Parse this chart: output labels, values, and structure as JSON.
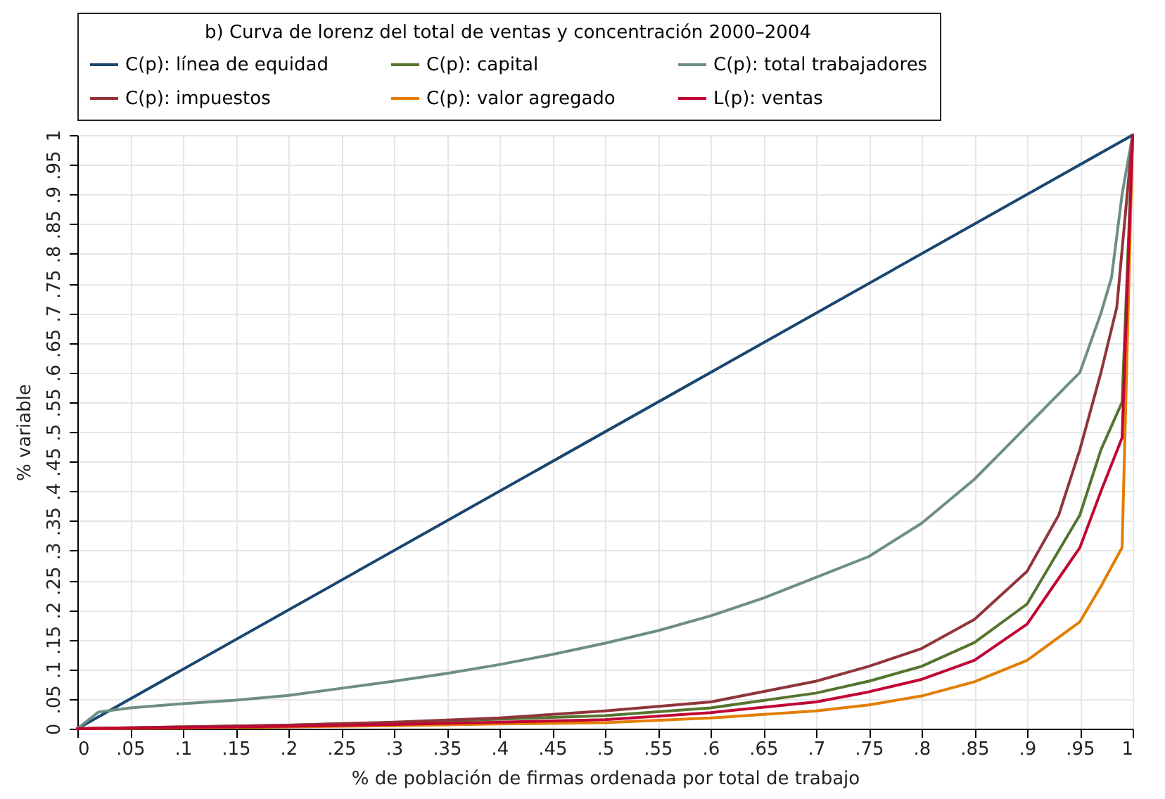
{
  "chart_data": {
    "type": "line",
    "legend_title": "b) Curva de lorenz del total de ventas y concentración 2000–2004",
    "xlabel": "% de población de firmas ordenada por total de trabajo",
    "ylabel": "% variable",
    "xlim": [
      0,
      1
    ],
    "ylim": [
      0,
      1
    ],
    "xticks": [
      0,
      {
        "value": 0.05,
        "label": ".05"
      },
      {
        "value": 0.1,
        "label": ".1"
      },
      {
        "value": 0.15,
        "label": ".15"
      },
      {
        "value": 0.2,
        "label": ".2"
      },
      {
        "value": 0.25,
        "label": ".25"
      },
      {
        "value": 0.3,
        "label": ".3"
      },
      {
        "value": 0.35,
        "label": ".35"
      },
      {
        "value": 0.4,
        "label": ".4"
      },
      {
        "value": 0.45,
        "label": ".45"
      },
      {
        "value": 0.5,
        "label": ".5"
      },
      {
        "value": 0.55,
        "label": ".55"
      },
      {
        "value": 0.6,
        "label": ".6"
      },
      {
        "value": 0.65,
        "label": ".65"
      },
      {
        "value": 0.7,
        "label": ".7"
      },
      {
        "value": 0.75,
        "label": ".75"
      },
      {
        "value": 0.8,
        "label": ".8"
      },
      {
        "value": 0.85,
        "label": ".85"
      },
      {
        "value": 0.9,
        "label": ".9"
      },
      {
        "value": 0.95,
        "label": ".95"
      },
      1
    ],
    "yticks": [
      0,
      {
        "value": 0.05,
        "label": ".05"
      },
      {
        "value": 0.1,
        "label": ".1"
      },
      {
        "value": 0.15,
        "label": ".15"
      },
      {
        "value": 0.2,
        "label": ".2"
      },
      {
        "value": 0.25,
        "label": ".25"
      },
      {
        "value": 0.3,
        "label": ".3"
      },
      {
        "value": 0.35,
        "label": ".35"
      },
      {
        "value": 0.4,
        "label": ".4"
      },
      {
        "value": 0.45,
        "label": ".45"
      },
      {
        "value": 0.5,
        "label": ".5"
      },
      {
        "value": 0.55,
        "label": ".55"
      },
      {
        "value": 0.6,
        "label": ".6"
      },
      {
        "value": 0.65,
        "label": ".65"
      },
      {
        "value": 0.7,
        "label": ".7"
      },
      {
        "value": 0.75,
        "label": ".75"
      },
      {
        "value": 0.8,
        "label": ".8"
      },
      {
        "value": 0.85,
        "label": ".85"
      },
      {
        "value": 0.9,
        "label": ".9"
      },
      {
        "value": 0.95,
        "label": ".95"
      },
      1
    ],
    "grid": true,
    "legend": "top",
    "series": [
      {
        "name": "C(p): línea de equidad",
        "color": "#1a476f",
        "x": [
          0,
          1
        ],
        "values": [
          0,
          1
        ]
      },
      {
        "name": "C(p): capital",
        "color": "#55752f",
        "x": [
          0,
          0.1,
          0.2,
          0.3,
          0.4,
          0.5,
          0.6,
          0.7,
          0.75,
          0.8,
          0.85,
          0.9,
          0.95,
          0.97,
          0.99,
          1
        ],
        "values": [
          0,
          0.003,
          0.006,
          0.01,
          0.016,
          0.022,
          0.035,
          0.06,
          0.08,
          0.105,
          0.145,
          0.21,
          0.36,
          0.47,
          0.55,
          1
        ]
      },
      {
        "name": "C(p): total trabajadores",
        "color": "#6e8e84",
        "x": [
          0,
          0.02,
          0.05,
          0.1,
          0.15,
          0.2,
          0.25,
          0.3,
          0.35,
          0.4,
          0.45,
          0.5,
          0.55,
          0.6,
          0.65,
          0.7,
          0.75,
          0.8,
          0.85,
          0.9,
          0.95,
          0.97,
          0.98,
          0.99,
          1
        ],
        "values": [
          0,
          0.028,
          0.035,
          0.042,
          0.048,
          0.056,
          0.068,
          0.08,
          0.093,
          0.108,
          0.125,
          0.144,
          0.165,
          0.19,
          0.22,
          0.255,
          0.29,
          0.346,
          0.42,
          0.51,
          0.6,
          0.7,
          0.76,
          0.9,
          1
        ]
      },
      {
        "name": "C(p): impuestos",
        "color": "#90353b",
        "x": [
          0,
          0.1,
          0.2,
          0.3,
          0.4,
          0.5,
          0.6,
          0.7,
          0.75,
          0.8,
          0.85,
          0.9,
          0.93,
          0.95,
          0.97,
          0.985,
          1
        ],
        "values": [
          0,
          0.003,
          0.006,
          0.011,
          0.018,
          0.03,
          0.045,
          0.08,
          0.105,
          0.135,
          0.184,
          0.265,
          0.36,
          0.47,
          0.6,
          0.71,
          1
        ]
      },
      {
        "name": "C(p): valor agregado",
        "color": "#e37e00",
        "x": [
          0,
          0.1,
          0.2,
          0.3,
          0.4,
          0.5,
          0.6,
          0.7,
          0.75,
          0.8,
          0.85,
          0.9,
          0.95,
          0.97,
          0.99,
          1
        ],
        "values": [
          0,
          0.001,
          0.003,
          0.005,
          0.008,
          0.01,
          0.018,
          0.03,
          0.04,
          0.055,
          0.079,
          0.115,
          0.18,
          0.24,
          0.305,
          1
        ]
      },
      {
        "name": "L(p): ventas",
        "color": "#c10534",
        "x": [
          0,
          0.1,
          0.2,
          0.3,
          0.4,
          0.5,
          0.6,
          0.7,
          0.75,
          0.8,
          0.85,
          0.9,
          0.95,
          0.97,
          0.99,
          1
        ],
        "values": [
          0,
          0.002,
          0.004,
          0.007,
          0.011,
          0.015,
          0.027,
          0.045,
          0.062,
          0.083,
          0.115,
          0.176,
          0.305,
          0.4,
          0.49,
          1
        ]
      }
    ]
  }
}
